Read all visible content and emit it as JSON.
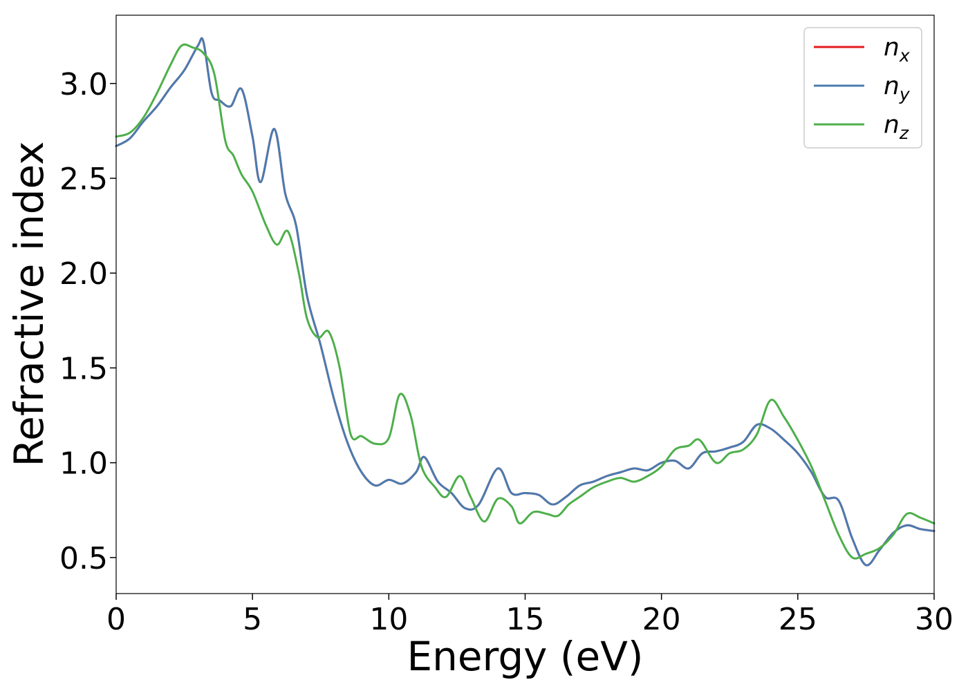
{
  "chart_data": {
    "type": "line",
    "title": "",
    "xlabel": "Energy (eV)",
    "ylabel": "Refractive index",
    "xlim": [
      0,
      30
    ],
    "ylim": [
      0.31,
      3.36
    ],
    "xticks": [
      0,
      5,
      10,
      15,
      20,
      25,
      30
    ],
    "yticks": [
      0.5,
      1.0,
      1.5,
      2.0,
      2.5,
      3.0
    ],
    "xtick_labels": [
      "0",
      "5",
      "10",
      "15",
      "20",
      "25",
      "30"
    ],
    "ytick_labels": [
      "0.5",
      "1.0",
      "1.5",
      "2.0",
      "2.5",
      "3.0"
    ],
    "grid": false,
    "legend_position": "top-right",
    "series": [
      {
        "name": "n",
        "subscript": "x",
        "color": "#e41a1c",
        "x": [
          0,
          0.5,
          1.0,
          1.5,
          2.0,
          2.5,
          3.0,
          3.2,
          3.5,
          3.8,
          4.2,
          4.6,
          5.0,
          5.3,
          5.8,
          6.2,
          6.6,
          7.0,
          7.5,
          8.0,
          8.5,
          9.0,
          9.5,
          10.0,
          10.5,
          11.0,
          11.3,
          11.8,
          12.3,
          12.8,
          13.3,
          14.0,
          14.5,
          15.0,
          15.5,
          16.0,
          16.5,
          17.0,
          17.5,
          18.0,
          18.5,
          19.0,
          19.5,
          20.0,
          20.5,
          21.0,
          21.5,
          22.0,
          22.5,
          23.0,
          23.5,
          24.0,
          24.5,
          25.0,
          25.5,
          26.0,
          26.5,
          27.0,
          27.5,
          28.0,
          28.5,
          29.0,
          29.5,
          30.0
        ],
        "y": [
          2.67,
          2.71,
          2.8,
          2.88,
          2.98,
          3.07,
          3.2,
          3.22,
          2.95,
          2.91,
          2.88,
          2.97,
          2.72,
          2.48,
          2.76,
          2.42,
          2.25,
          1.88,
          1.62,
          1.33,
          1.1,
          0.95,
          0.88,
          0.91,
          0.89,
          0.95,
          1.03,
          0.9,
          0.84,
          0.76,
          0.78,
          0.97,
          0.84,
          0.84,
          0.83,
          0.78,
          0.82,
          0.88,
          0.9,
          0.93,
          0.95,
          0.97,
          0.96,
          1.0,
          1.01,
          0.97,
          1.05,
          1.06,
          1.08,
          1.11,
          1.2,
          1.18,
          1.12,
          1.05,
          0.95,
          0.82,
          0.8,
          0.6,
          0.46,
          0.54,
          0.63,
          0.67,
          0.65,
          0.64
        ]
      },
      {
        "name": "n",
        "subscript": "y",
        "color": "#4a7bb0",
        "x": [
          0,
          0.5,
          1.0,
          1.5,
          2.0,
          2.5,
          3.0,
          3.2,
          3.5,
          3.8,
          4.2,
          4.6,
          5.0,
          5.3,
          5.8,
          6.2,
          6.6,
          7.0,
          7.5,
          8.0,
          8.5,
          9.0,
          9.5,
          10.0,
          10.5,
          11.0,
          11.3,
          11.8,
          12.3,
          12.8,
          13.3,
          14.0,
          14.5,
          15.0,
          15.5,
          16.0,
          16.5,
          17.0,
          17.5,
          18.0,
          18.5,
          19.0,
          19.5,
          20.0,
          20.5,
          21.0,
          21.5,
          22.0,
          22.5,
          23.0,
          23.5,
          24.0,
          24.5,
          25.0,
          25.5,
          26.0,
          26.5,
          27.0,
          27.5,
          28.0,
          28.5,
          29.0,
          29.5,
          30.0
        ],
        "y": [
          2.67,
          2.71,
          2.8,
          2.88,
          2.98,
          3.07,
          3.2,
          3.22,
          2.95,
          2.91,
          2.88,
          2.97,
          2.72,
          2.48,
          2.76,
          2.42,
          2.25,
          1.88,
          1.62,
          1.33,
          1.1,
          0.95,
          0.88,
          0.91,
          0.89,
          0.95,
          1.03,
          0.9,
          0.84,
          0.76,
          0.78,
          0.97,
          0.84,
          0.84,
          0.83,
          0.78,
          0.82,
          0.88,
          0.9,
          0.93,
          0.95,
          0.97,
          0.96,
          1.0,
          1.01,
          0.97,
          1.05,
          1.06,
          1.08,
          1.11,
          1.2,
          1.18,
          1.12,
          1.05,
          0.95,
          0.82,
          0.8,
          0.6,
          0.46,
          0.54,
          0.63,
          0.67,
          0.65,
          0.64
        ]
      },
      {
        "name": "n",
        "subscript": "z",
        "color": "#4daf4a",
        "x": [
          0,
          0.5,
          1.0,
          1.5,
          2.0,
          2.4,
          2.8,
          3.2,
          3.6,
          4.0,
          4.3,
          4.6,
          5.0,
          5.5,
          5.9,
          6.3,
          6.7,
          7.0,
          7.4,
          7.8,
          8.2,
          8.6,
          9.0,
          9.5,
          10.0,
          10.4,
          10.8,
          11.2,
          11.7,
          12.1,
          12.6,
          13.0,
          13.5,
          14.0,
          14.5,
          14.8,
          15.3,
          15.8,
          16.2,
          16.6,
          17.0,
          17.5,
          18.0,
          18.5,
          19.0,
          19.5,
          20.0,
          20.5,
          21.0,
          21.4,
          22.0,
          22.5,
          23.0,
          23.5,
          24.0,
          24.5,
          25.0,
          25.5,
          26.0,
          26.5,
          27.0,
          27.5,
          28.0,
          28.5,
          29.0,
          29.5,
          30.0
        ],
        "y": [
          2.72,
          2.74,
          2.82,
          2.95,
          3.1,
          3.2,
          3.19,
          3.16,
          3.05,
          2.7,
          2.62,
          2.52,
          2.43,
          2.25,
          2.15,
          2.22,
          2.0,
          1.76,
          1.66,
          1.69,
          1.5,
          1.15,
          1.14,
          1.1,
          1.13,
          1.36,
          1.25,
          0.98,
          0.87,
          0.82,
          0.93,
          0.82,
          0.69,
          0.81,
          0.77,
          0.68,
          0.74,
          0.73,
          0.72,
          0.78,
          0.82,
          0.87,
          0.9,
          0.92,
          0.9,
          0.93,
          0.98,
          1.07,
          1.09,
          1.12,
          1.0,
          1.05,
          1.07,
          1.15,
          1.33,
          1.24,
          1.12,
          0.98,
          0.8,
          0.62,
          0.5,
          0.52,
          0.55,
          0.62,
          0.73,
          0.71,
          0.68
        ]
      }
    ]
  }
}
